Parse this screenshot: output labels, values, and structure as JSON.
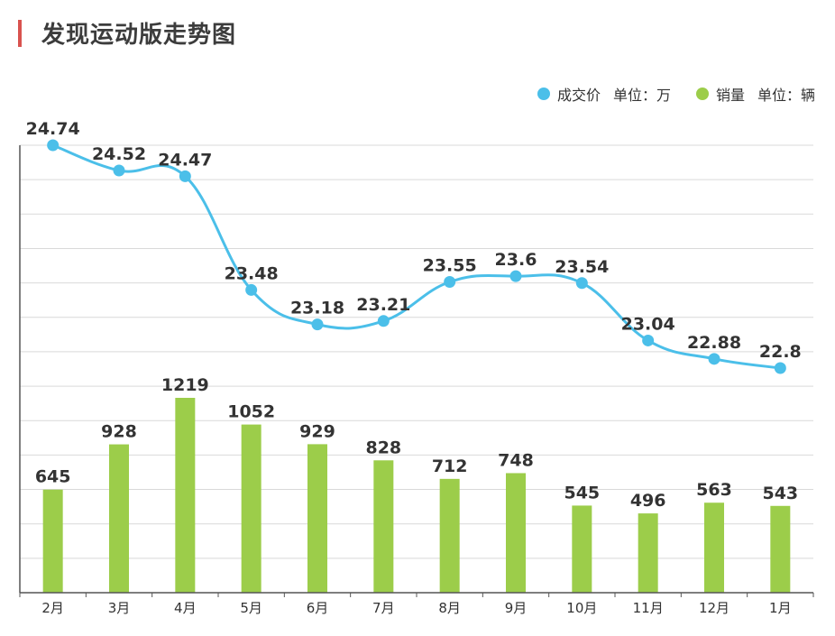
{
  "page": {
    "title": "发现运动版走势图"
  },
  "legend": [
    {
      "name": "成交价",
      "unit": "单位：万",
      "color": "#4bbfe9"
    },
    {
      "name": "销量",
      "unit": "单位：辆",
      "color": "#9ccd4a"
    }
  ],
  "chart_data": {
    "type": "bar+line",
    "categories": [
      "2月",
      "3月",
      "4月",
      "5月",
      "6月",
      "7月",
      "8月",
      "9月",
      "10月",
      "11月",
      "12月",
      "1月"
    ],
    "series": [
      {
        "name": "成交价",
        "type": "line",
        "unit": "单位：万",
        "color": "#4bbfe9",
        "values": [
          24.74,
          24.52,
          24.47,
          23.48,
          23.18,
          23.21,
          23.55,
          23.6,
          23.54,
          23.04,
          22.88,
          22.8
        ]
      },
      {
        "name": "销量",
        "type": "bar",
        "unit": "单位：辆",
        "color": "#9ccd4a",
        "values": [
          645,
          928,
          1219,
          1052,
          929,
          828,
          712,
          748,
          545,
          496,
          563,
          543
        ]
      }
    ],
    "legend_position": "top-right",
    "grid": true
  }
}
